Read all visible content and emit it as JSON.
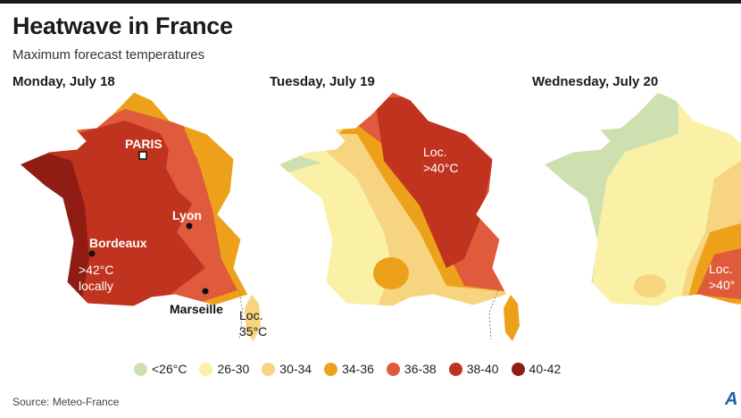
{
  "header": {
    "title": "Heatwave in France",
    "subtitle": "Maximum forecast temperatures"
  },
  "days": [
    {
      "label": "Monday, July 18"
    },
    {
      "label": "Tuesday, July 19"
    },
    {
      "label": "Wednesday, July 20"
    }
  ],
  "map_labels": {
    "paris": "PARIS",
    "lyon": "Lyon",
    "bordeaux": "Bordeaux",
    "marseille": "Marseille",
    "mon_local_1": ">42°C",
    "mon_local_2": "locally",
    "mon_corsica_1": "Loc.",
    "mon_corsica_2": "35°C",
    "tue_loc_1": "Loc.",
    "tue_loc_2": ">40°C",
    "wed_loc_1": "Loc.",
    "wed_loc_2": ">40°"
  },
  "legend": [
    {
      "label": "<26°C",
      "color": "#cfe0b0"
    },
    {
      "label": "26-30",
      "color": "#faf0a6"
    },
    {
      "label": "30-34",
      "color": "#f7d47f"
    },
    {
      "label": "34-36",
      "color": "#eda11a"
    },
    {
      "label": "36-38",
      "color": "#e05a3c"
    },
    {
      "label": "38-40",
      "color": "#c0331e"
    },
    {
      "label": "40-42",
      "color": "#8f1d14"
    }
  ],
  "source": "Source: Meteo-France",
  "logo": "AFP"
}
